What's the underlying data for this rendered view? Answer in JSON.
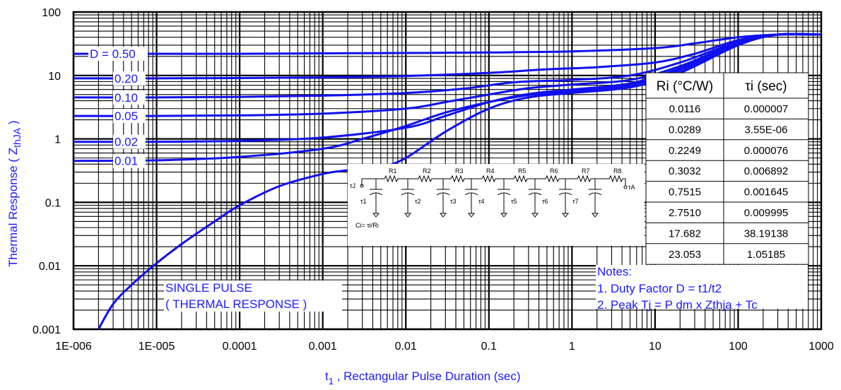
{
  "chart_data": {
    "type": "line",
    "x_scale": "log",
    "y_scale": "log",
    "xlim": [
      1e-06,
      1000
    ],
    "ylim": [
      0.001,
      100
    ],
    "grid": true,
    "xlabel_prefix": "t",
    "xlabel_sub": "1",
    "xlabel_rest": " , Rectangular Pulse Duration (sec)",
    "ylabel": "Thermal Response ( Z",
    "ylabel_sub": "thJA",
    "ylabel_close": " )",
    "x_tick_labels": [
      "1E-006",
      "1E-005",
      "0.0001",
      "0.001",
      "0.01",
      "0.1",
      "1",
      "10",
      "100",
      "1000"
    ],
    "y_tick_labels": [
      "0.001",
      "0.01",
      "0.1",
      "1",
      "10",
      "100"
    ],
    "series": [
      {
        "name": "D = 0.50",
        "x": [
          1e-06,
          1e-05,
          0.0001,
          0.001,
          0.01,
          0.1,
          1,
          10,
          30,
          100,
          300,
          1000
        ],
        "y": [
          22,
          22,
          22,
          22.3,
          22.6,
          23,
          24,
          27,
          32,
          40,
          44,
          44
        ]
      },
      {
        "name": "0.20",
        "x": [
          1e-06,
          1e-05,
          0.0001,
          0.001,
          0.01,
          0.1,
          0.5,
          2,
          10,
          30,
          100,
          300,
          1000
        ],
        "y": [
          9,
          9,
          9.1,
          9.3,
          9.8,
          11,
          12.5,
          13.5,
          16,
          22,
          36,
          44,
          44
        ]
      },
      {
        "name": "0.10",
        "x": [
          1e-06,
          1e-05,
          0.0001,
          0.001,
          0.01,
          0.05,
          0.2,
          1,
          5,
          20,
          100,
          300,
          1000
        ],
        "y": [
          4.5,
          4.5,
          4.6,
          4.8,
          5.3,
          6.2,
          7.8,
          8.5,
          10,
          16,
          34,
          44,
          44
        ]
      },
      {
        "name": "0.05",
        "x": [
          1e-06,
          1e-05,
          0.0001,
          0.001,
          0.01,
          0.03,
          0.1,
          0.3,
          1,
          5,
          20,
          100,
          300,
          1000
        ],
        "y": [
          2.3,
          2.3,
          2.35,
          2.5,
          3.0,
          3.8,
          5.0,
          6.3,
          7.2,
          8.5,
          14,
          33,
          44,
          44
        ]
      },
      {
        "name": "0.02",
        "x": [
          1e-06,
          1e-05,
          0.0001,
          0.001,
          0.01,
          0.03,
          0.1,
          0.3,
          1,
          5,
          20,
          100,
          300,
          1000
        ],
        "y": [
          0.9,
          0.9,
          0.93,
          1.05,
          1.5,
          2.3,
          3.8,
          5.1,
          6.0,
          7.5,
          13,
          32,
          44,
          44
        ]
      },
      {
        "name": "0.01",
        "x": [
          1e-06,
          1e-05,
          0.0001,
          0.001,
          0.003,
          0.01,
          0.03,
          0.1,
          0.3,
          1,
          5,
          20,
          100,
          300,
          1000
        ],
        "y": [
          0.45,
          0.46,
          0.52,
          0.7,
          1.0,
          1.6,
          2.6,
          3.8,
          4.9,
          5.6,
          7,
          12,
          31,
          44,
          44
        ]
      },
      {
        "name": "SINGLE PULSE",
        "x": [
          2e-06,
          3e-06,
          5e-06,
          1e-05,
          2e-05,
          5e-05,
          0.0001,
          0.0003,
          0.001,
          0.002,
          0.005,
          0.01,
          0.03,
          0.1,
          0.3,
          1,
          5,
          20,
          100,
          300,
          1000
        ],
        "y": [
          0.001,
          0.0025,
          0.005,
          0.011,
          0.022,
          0.05,
          0.09,
          0.18,
          0.28,
          0.32,
          0.36,
          0.5,
          1.3,
          3.0,
          4.5,
          5.3,
          6.5,
          11,
          30,
          44,
          44
        ]
      }
    ],
    "annotations": {
      "d_labels": [
        "D = 0.50",
        "0.20",
        "0.10",
        "0.05",
        "0.02",
        "0.01"
      ],
      "single_pulse_line1": "SINGLE PULSE",
      "single_pulse_line2": "( THERMAL RESPONSE )",
      "notes_title": "Notes:",
      "note1": "1. Duty Factor D = t1/t2",
      "note2": "2. Peak Tj = P dm x Zthja + Tc"
    },
    "table": {
      "headers": [
        "Ri (°C/W)",
        "τi (sec)"
      ],
      "rows": [
        [
          "0.0116",
          "0.000007"
        ],
        [
          "0.0289",
          "3.55E-06"
        ],
        [
          "0.2249",
          "0.000076"
        ],
        [
          "0.3032",
          "0.006892"
        ],
        [
          "0.7515",
          "0.001645"
        ],
        [
          "2.7510",
          "0.009995"
        ],
        [
          "17.682",
          "38.19138"
        ],
        [
          "23.053",
          "1.05185"
        ]
      ]
    },
    "circuit": {
      "resistors": [
        "R1",
        "R2",
        "R3",
        "R4",
        "R5",
        "R6",
        "R7",
        "R8"
      ],
      "taus": [
        "τ1",
        "τ2",
        "τ3",
        "τ4",
        "τ5",
        "τ6",
        "τ7"
      ],
      "left_node": "τJ",
      "right_node": "τA",
      "formula": "Ci= τi/Ri"
    },
    "colors": {
      "curve": "#1010ee",
      "text": "#1a1aff",
      "grid": "#000000"
    }
  }
}
